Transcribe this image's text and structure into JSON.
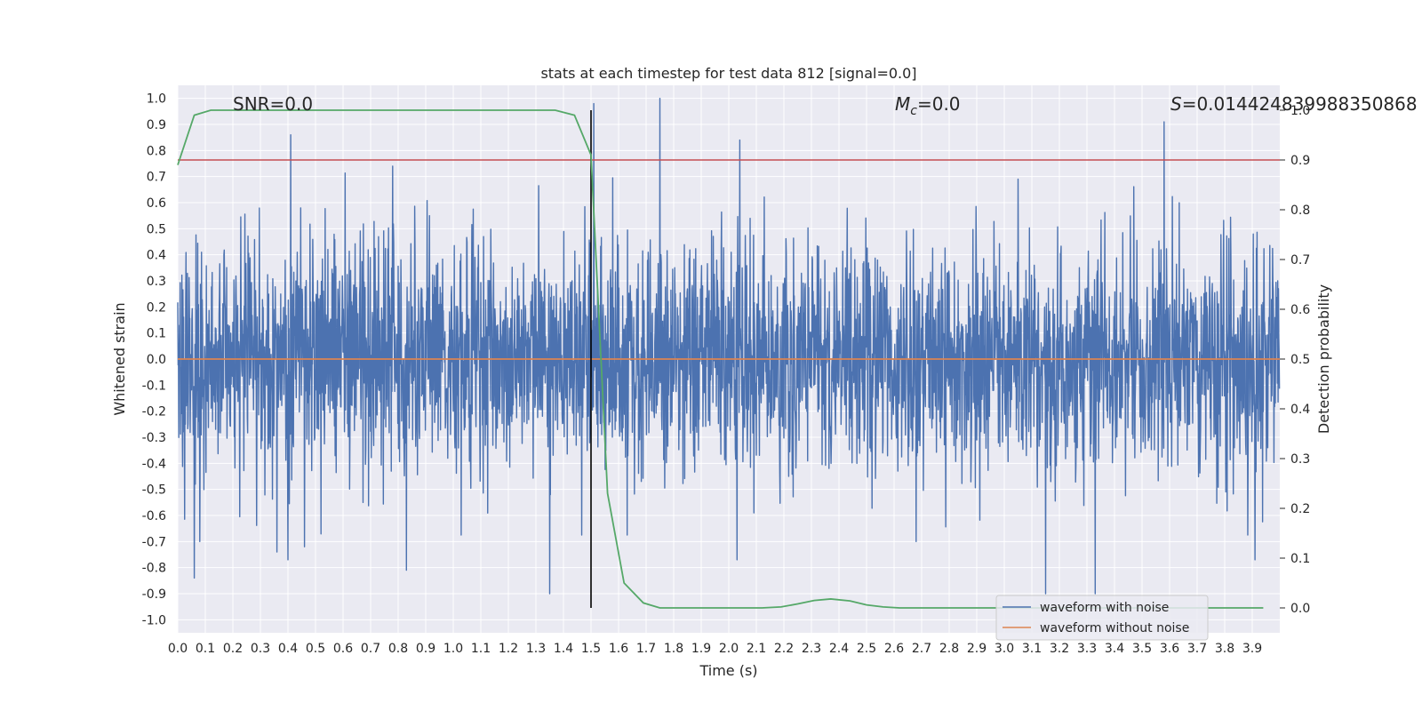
{
  "chart_data": {
    "type": "line",
    "title": "stats at each timestep for test data 812 [signal=0.0]",
    "xlabel": "Time (s)",
    "ylabel": "Whitened strain",
    "y2label": "Detection probability",
    "xlim": [
      0.0,
      4.0
    ],
    "ylim": [
      -1.05,
      1.05
    ],
    "y2lim": [
      -0.05,
      1.05
    ],
    "x_ticks": [
      "0.0",
      "0.1",
      "0.2",
      "0.3",
      "0.4",
      "0.5",
      "0.6",
      "0.7",
      "0.8",
      "0.9",
      "1.0",
      "1.1",
      "1.2",
      "1.3",
      "1.4",
      "1.5",
      "1.6",
      "1.7",
      "1.8",
      "1.9",
      "2.0",
      "2.1",
      "2.2",
      "2.3",
      "2.4",
      "2.5",
      "2.6",
      "2.7",
      "2.8",
      "2.9",
      "3.0",
      "3.1",
      "3.2",
      "3.3",
      "3.4",
      "3.5",
      "3.6",
      "3.7",
      "3.8",
      "3.9"
    ],
    "y_ticks": [
      "1.0",
      "0.9",
      "0.8",
      "0.7",
      "0.6",
      "0.5",
      "0.4",
      "0.3",
      "0.2",
      "0.1",
      "0.0",
      "-0.1",
      "-0.2",
      "-0.3",
      "-0.4",
      "-0.5",
      "-0.6",
      "-0.7",
      "-0.8",
      "-0.9",
      "-1.0"
    ],
    "y2_ticks": [
      "1.0",
      "0.9",
      "0.8",
      "0.7",
      "0.6",
      "0.5",
      "0.4",
      "0.3",
      "0.2",
      "0.1",
      "0.0"
    ],
    "grid": true,
    "legend_position": "bottom-right",
    "annotations": {
      "snr": "SNR=0.0",
      "mc_symbol": "M",
      "mc_sub": "c",
      "mc_value": "=0.0",
      "s_symbol": "S",
      "s_value": "=0.014424839988350868"
    },
    "vertical_marker_x": 1.5,
    "threshold_y2": 0.9,
    "series": [
      {
        "name": "waveform with noise",
        "color": "#4c72b0",
        "kind": "noise",
        "amplitude_range": [
          -0.9,
          1.0
        ],
        "spikes": [
          [
            0.06,
            -0.84
          ],
          [
            0.08,
            -0.7
          ],
          [
            0.41,
            0.86
          ],
          [
            0.4,
            -0.77
          ],
          [
            0.36,
            -0.74
          ],
          [
            0.46,
            -0.72
          ],
          [
            0.83,
            -0.81
          ],
          [
            0.78,
            0.74
          ],
          [
            1.35,
            -0.9
          ],
          [
            1.75,
            1.0
          ],
          [
            1.51,
            0.98
          ],
          [
            2.04,
            0.84
          ],
          [
            2.03,
            -0.77
          ],
          [
            2.68,
            -0.7
          ],
          [
            3.15,
            -0.9
          ],
          [
            3.33,
            -0.9
          ],
          [
            3.58,
            0.91
          ],
          [
            3.91,
            -0.77
          ],
          [
            3.05,
            0.69
          ]
        ]
      },
      {
        "name": "waveform without noise",
        "color": "#dd8452",
        "x": [
          0.0,
          4.0
        ],
        "y": [
          0.0,
          0.0
        ]
      },
      {
        "name": "detection probability",
        "color": "#55a868",
        "axis": "right",
        "x": [
          0.0,
          0.06,
          0.12,
          0.18,
          0.25,
          0.5,
          1.0,
          1.37,
          1.44,
          1.5,
          1.56,
          1.62,
          1.69,
          1.75,
          1.81,
          1.87,
          1.94,
          2.0,
          2.06,
          2.12,
          2.19,
          2.25,
          2.31,
          2.37,
          2.44,
          2.5,
          2.56,
          2.62,
          3.0,
          3.5,
          3.94
        ],
        "y": [
          0.89,
          0.99,
          1.0,
          1.0,
          1.0,
          1.0,
          1.0,
          1.0,
          0.99,
          0.91,
          0.23,
          0.05,
          0.01,
          0.0,
          0.0,
          0.0,
          0.0,
          0.0,
          0.0,
          0.0,
          0.002,
          0.008,
          0.015,
          0.018,
          0.014,
          0.006,
          0.002,
          0.0,
          0.0,
          0.0,
          0.0
        ]
      }
    ]
  },
  "legend": {
    "items": [
      {
        "label": "waveform with noise",
        "color": "#4c72b0"
      },
      {
        "label": "waveform without noise",
        "color": "#dd8452"
      }
    ]
  },
  "colors": {
    "plot_background": "#eaeaf2",
    "grid": "#ffffff",
    "threshold": "#c44e52",
    "marker": "#000000"
  }
}
